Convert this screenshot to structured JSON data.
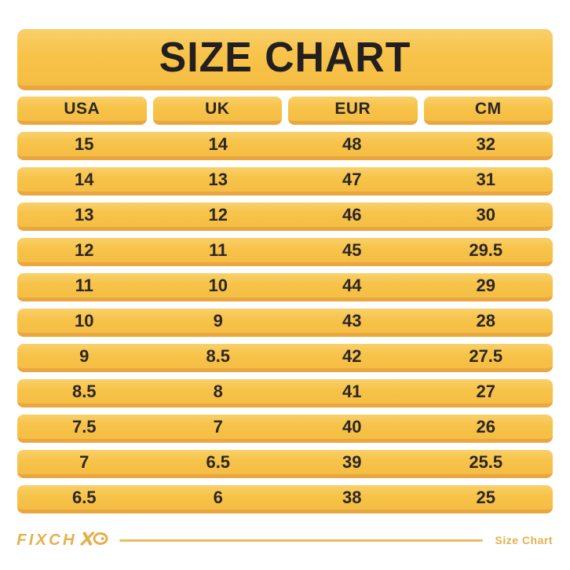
{
  "title": "SIZE CHART",
  "chart_data": {
    "type": "table",
    "title": "SIZE CHART",
    "columns": [
      "USA",
      "UK",
      "EUR",
      "CM"
    ],
    "rows": [
      [
        "15",
        "14",
        "48",
        "32"
      ],
      [
        "14",
        "13",
        "47",
        "31"
      ],
      [
        "13",
        "12",
        "46",
        "30"
      ],
      [
        "12",
        "11",
        "45",
        "29.5"
      ],
      [
        "11",
        "10",
        "44",
        "29"
      ],
      [
        "10",
        "9",
        "43",
        "28"
      ],
      [
        "9",
        "8.5",
        "42",
        "27.5"
      ],
      [
        "8.5",
        "8",
        "41",
        "27"
      ],
      [
        "7.5",
        "7",
        "40",
        "26"
      ],
      [
        "7",
        "6.5",
        "39",
        "25.5"
      ],
      [
        "6.5",
        "6",
        "38",
        "25"
      ]
    ]
  },
  "footer": {
    "brand": "FIXCH",
    "brand_mark_icon": "fixch-xo-logo-icon",
    "label": "Size Chart"
  },
  "colors": {
    "bar_gold": "#f7c349",
    "bar_gold_light": "#f9d06a",
    "bar_lip_dark": "#eaa73f",
    "text_dark": "#2b2627",
    "footer_gold": "#e2b14e",
    "background": "#ffffff"
  }
}
